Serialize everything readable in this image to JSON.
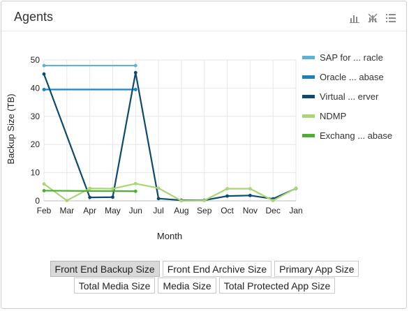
{
  "panel": {
    "title": "Agents",
    "tools": [
      "bar-chart-icon",
      "toggle-chart-icon",
      "list-icon"
    ]
  },
  "chart_data": {
    "type": "line",
    "x": [
      "Feb",
      "Mar",
      "Apr",
      "May",
      "Jun",
      "Jul",
      "Aug",
      "Sep",
      "Oct",
      "Nov",
      "Dec",
      "Jan"
    ],
    "xlabel": "Month",
    "ylabel": "Backup Size (TB)",
    "ylim": [
      0,
      50
    ],
    "yticks": [
      0,
      10,
      20,
      30,
      40,
      50
    ],
    "grid": true,
    "legend_position": "right",
    "series": [
      {
        "name": "SAP for ... racle",
        "color": "#5bb3d6",
        "values": [
          48,
          null,
          null,
          null,
          48,
          null,
          null,
          null,
          null,
          null,
          null,
          null
        ]
      },
      {
        "name": "Oracle ... abase",
        "color": "#1a80bf",
        "values": [
          39.5,
          null,
          null,
          null,
          39.5,
          null,
          null,
          null,
          null,
          null,
          null,
          null
        ]
      },
      {
        "name": "Virtual ... erver",
        "color": "#0d4a70",
        "values": [
          45,
          null,
          1.2,
          1.3,
          45.5,
          0.8,
          0.2,
          0.2,
          1.7,
          1.9,
          0.7,
          4.4
        ]
      },
      {
        "name": "NDMP",
        "color": "#a8d672",
        "values": [
          6,
          0.1,
          4.4,
          4.3,
          6.1,
          4.5,
          0,
          0.1,
          4.3,
          4.3,
          0.1,
          4.5
        ]
      },
      {
        "name": "Exchang ... abase",
        "color": "#4fae32",
        "values": [
          3.6,
          null,
          null,
          null,
          3.4,
          null,
          null,
          null,
          null,
          null,
          null,
          null
        ]
      }
    ]
  },
  "buttons": {
    "row1": [
      "Front End Backup Size",
      "Front End Archive Size",
      "Primary App Size"
    ],
    "row2": [
      "Total Media Size",
      "Media Size",
      "Total Protected App Size"
    ],
    "active": "Front End Backup Size"
  }
}
